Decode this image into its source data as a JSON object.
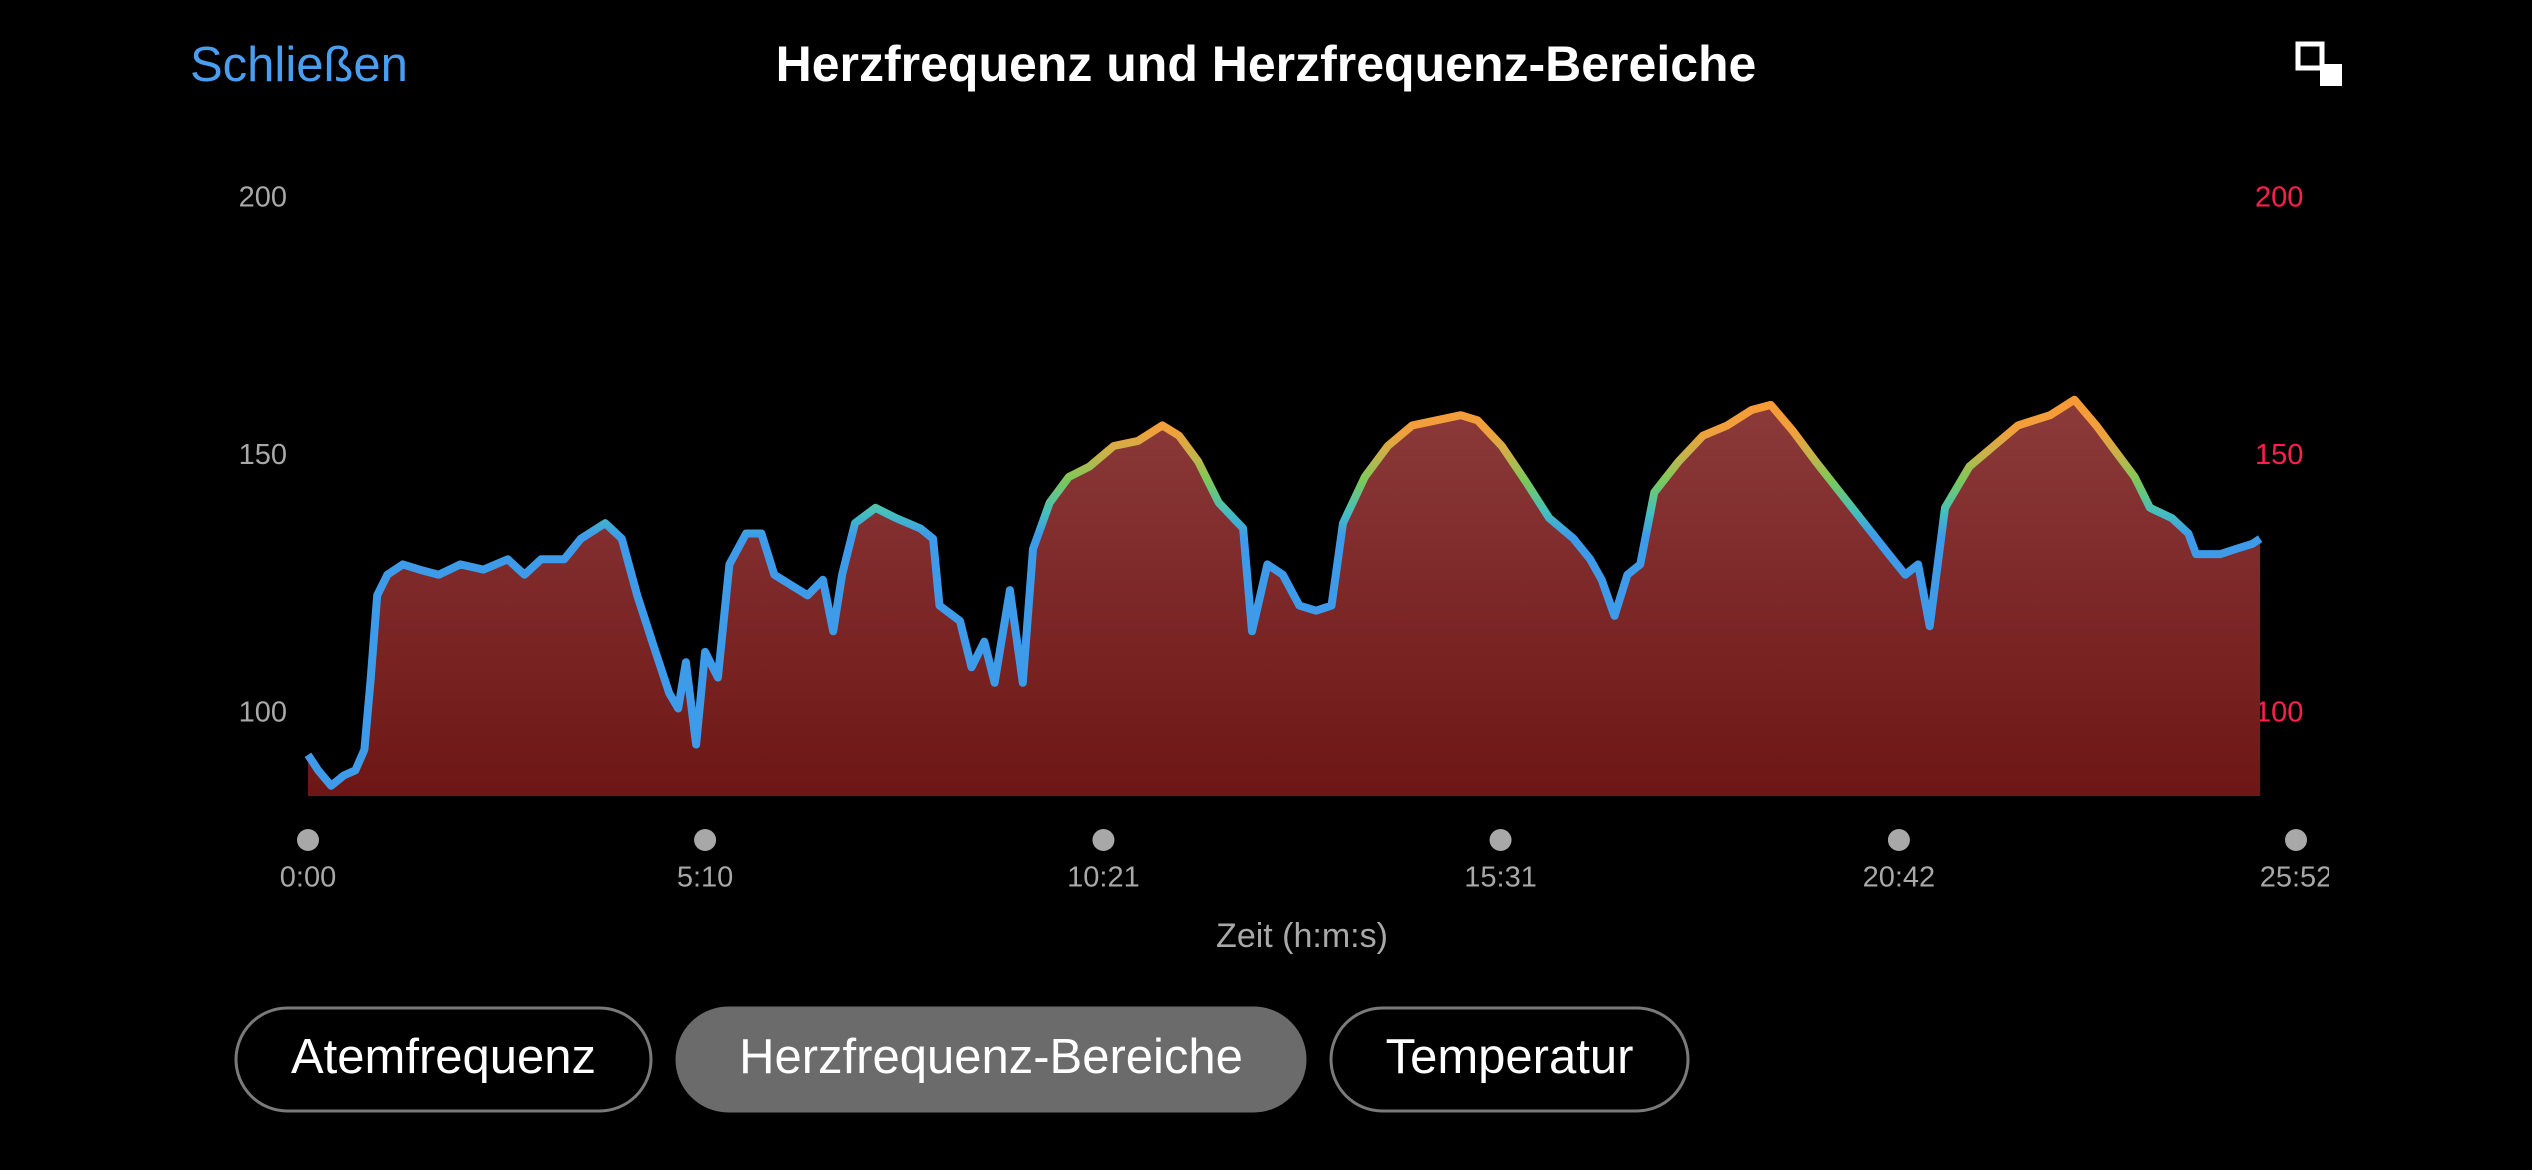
{
  "header": {
    "close": "Schließen",
    "title": "Herzfrequenz und Herzfrequenz-Bereiche"
  },
  "chart_data": {
    "type": "area",
    "xlabel": "Zeit (h:m:s)",
    "x": [
      0,
      8,
      18,
      28,
      37,
      44,
      49,
      54,
      62,
      74,
      87,
      102,
      119,
      137,
      156,
      169,
      182,
      200,
      213,
      232,
      245,
      257,
      270,
      282,
      289,
      295,
      303,
      310,
      320,
      329,
      342,
      354,
      364,
      377,
      390,
      402,
      410,
      417,
      427,
      443,
      459,
      478,
      488,
      493,
      509,
      518,
      528,
      536,
      548,
      558,
      566,
      579,
      594,
      610,
      629,
      648,
      667,
      680,
      695,
      711,
      730,
      737,
      749,
      761,
      774,
      787,
      799,
      808,
      825,
      843,
      862,
      881,
      900,
      913,
      932,
      951,
      969,
      988,
      1001,
      1010,
      1020,
      1030,
      1040,
      1051,
      1070,
      1089,
      1108,
      1127,
      1142,
      1159,
      1177,
      1196,
      1215,
      1234,
      1247,
      1257,
      1266,
      1278,
      1297,
      1316,
      1335,
      1360,
      1379,
      1396,
      1411,
      1426,
      1438,
      1455,
      1468,
      1474,
      1493,
      1505,
      1518,
      1524
    ],
    "values": [
      92,
      89,
      86,
      88,
      89,
      93,
      107,
      123,
      127,
      129,
      128,
      127,
      129,
      128,
      130,
      127,
      130,
      130,
      134,
      137,
      134,
      123,
      113,
      104,
      101,
      110,
      94,
      112,
      107,
      129,
      135,
      135,
      127,
      125,
      123,
      126,
      116,
      127,
      137,
      140,
      138,
      136,
      134,
      121,
      118,
      109,
      114,
      106,
      124,
      106,
      132,
      141,
      146,
      148,
      152,
      153,
      156,
      154,
      149,
      141,
      136,
      116,
      129,
      127,
      121,
      120,
      121,
      137,
      146,
      152,
      156,
      157,
      158,
      157,
      152,
      145,
      138,
      134,
      130,
      126,
      119,
      127,
      129,
      143,
      149,
      154,
      156,
      159,
      160,
      155,
      149,
      143,
      137,
      131,
      127,
      129,
      117,
      140,
      148,
      152,
      156,
      158,
      161,
      156,
      151,
      146,
      140,
      138,
      135,
      131,
      131,
      132,
      133,
      134
    ],
    "color": "#3d9be9",
    "fill": "#7a2727",
    "xlim": [
      0,
      1552
    ],
    "xticks": [
      {
        "value": 0,
        "label": "0:00"
      },
      {
        "value": 310,
        "label": "5:10"
      },
      {
        "value": 621,
        "label": "10:21"
      },
      {
        "value": 931,
        "label": "15:31"
      },
      {
        "value": 1242,
        "label": "20:42"
      },
      {
        "value": 1552,
        "label": "25:52"
      }
    ],
    "ylim": [
      84,
      200
    ],
    "yticks": [
      100,
      150,
      200
    ],
    "y2lim": [
      84,
      200
    ],
    "y2ticks": [
      100,
      150,
      200
    ],
    "y2color": "#ff1f4b"
  },
  "tabs": [
    {
      "label": "Atemfrequenz",
      "selected": false
    },
    {
      "label": "Herzfrequenz-Bereiche",
      "selected": true
    },
    {
      "label": "Temperatur",
      "selected": false
    }
  ]
}
